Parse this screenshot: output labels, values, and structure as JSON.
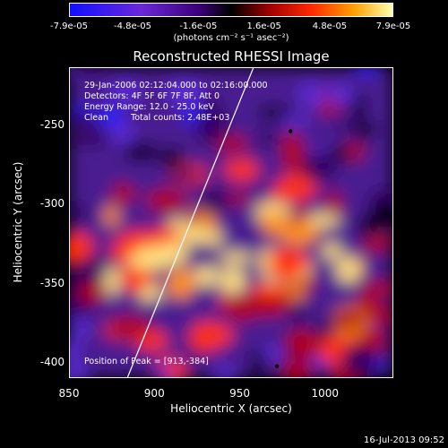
{
  "colorbar": {
    "ticks": [
      "-7.9e-05",
      "-4.8e-05",
      "-1.6e-05",
      "1.6e-05",
      "4.8e-05",
      "7.9e-05"
    ],
    "unit": "(photons cm⁻² s⁻¹ asec⁻²)",
    "range": [
      -7.9e-05,
      7.9e-05
    ]
  },
  "chart_data": {
    "type": "heatmap",
    "title": "Reconstructed RHESSI Image",
    "xlabel": "Heliocentric X (arcsec)",
    "ylabel": "Heliocentric Y (arcsec)",
    "xlim": [
      850,
      1040
    ],
    "ylim": [
      -410,
      -214
    ],
    "x_ticks": [
      "850",
      "900",
      "950",
      "1000"
    ],
    "y_ticks": [
      "-250",
      "-300",
      "-350",
      "-400"
    ],
    "annotations": {
      "time_range": "29-Jan-2006 02:12:04.000 to 02:16:00.000",
      "detectors": "Detectors: 4F 5F 6F 7F 8F, Att 0",
      "energy": "Energy Range: 12.0 - 25.0 keV",
      "clean": "Clean",
      "counts": "Total counts: 2.48E+03",
      "peak": "Position of Peak = [913,-384]"
    },
    "limb_line": {
      "x": [
        884,
        958
      ],
      "y": [
        -410,
        -214
      ]
    },
    "markers": [
      {
        "x": 980,
        "y": -254
      },
      {
        "x": 972,
        "y": -403
      }
    ]
  },
  "footer": {
    "date": "16-Jul-2013 09:52"
  }
}
